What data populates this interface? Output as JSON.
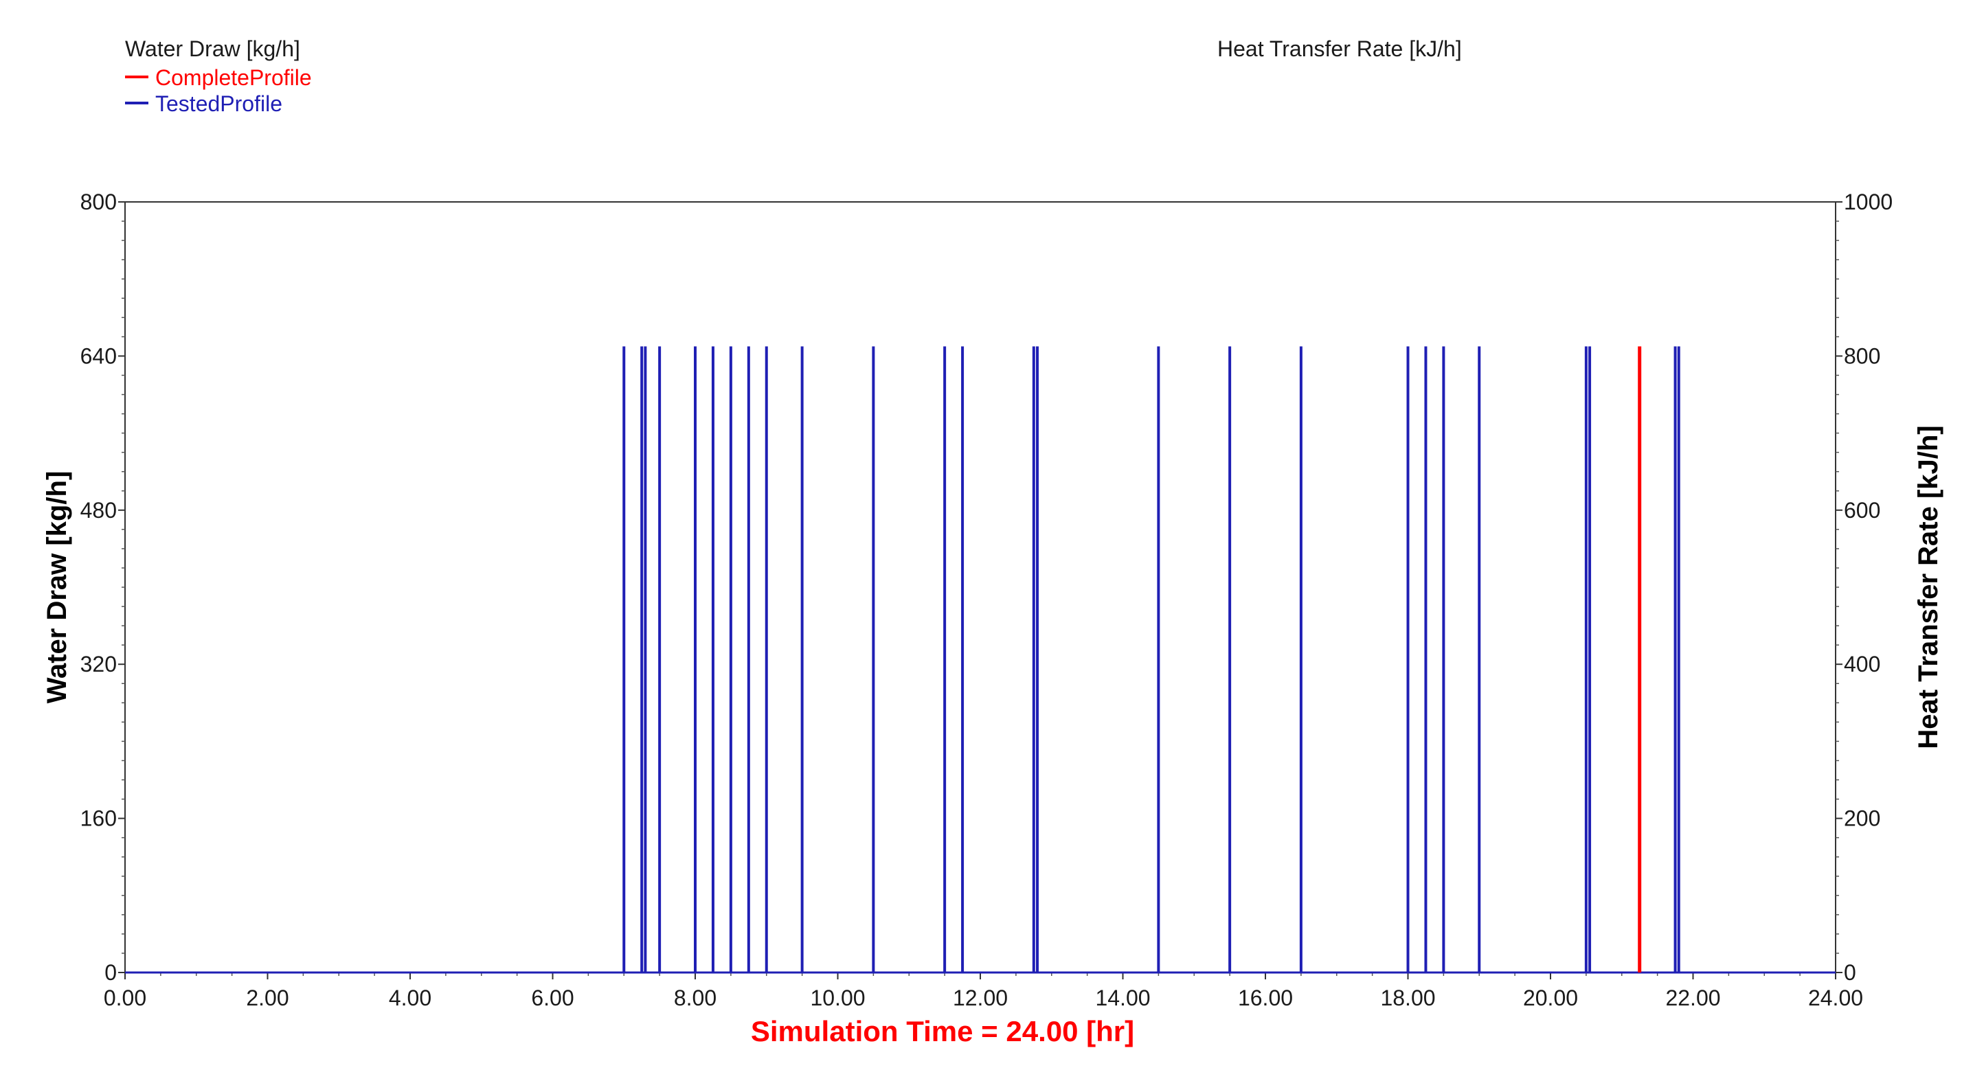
{
  "chart_data": {
    "type": "line",
    "legend_left": {
      "title": "Water Draw [kg/h]",
      "entries": [
        {
          "name": "CompleteProfile",
          "color": "#ff0000"
        },
        {
          "name": "TestedProfile",
          "color": "#1f1fb4"
        }
      ]
    },
    "legend_right": {
      "title": "Heat Transfer Rate [kJ/h]"
    },
    "ylabel_left": "Water Draw [kg/h]",
    "ylabel_right": "Heat Transfer Rate [kJ/h]",
    "xlim": [
      0,
      24
    ],
    "ylim_left": [
      0,
      800
    ],
    "ylim_right": [
      0,
      1000
    ],
    "x_ticks": [
      "0.00",
      "2.00",
      "4.00",
      "6.00",
      "8.00",
      "10.00",
      "12.00",
      "14.00",
      "16.00",
      "18.00",
      "20.00",
      "22.00",
      "24.00"
    ],
    "y_ticks_left": [
      "0",
      "160",
      "320",
      "480",
      "640",
      "800"
    ],
    "y_ticks_right": [
      "0",
      "200",
      "400",
      "600",
      "800",
      "1000"
    ],
    "status_text": "Simulation Time =  24.00 [hr]",
    "grid": false,
    "series": [
      {
        "name": "TestedProfile",
        "color": "#1f1fb4",
        "spike_value": 650,
        "spike_times": [
          7.0,
          7.25,
          7.3,
          7.5,
          8.0,
          8.25,
          8.5,
          8.75,
          9.0,
          9.5,
          10.5,
          11.5,
          11.75,
          12.75,
          12.8,
          14.5,
          15.5,
          16.5,
          18.0,
          18.25,
          18.5,
          19.0,
          20.5,
          20.55,
          21.75,
          21.8
        ]
      },
      {
        "name": "CompleteProfile",
        "color": "#ff0000",
        "spike_value": 650,
        "spike_times": [
          21.25
        ]
      }
    ]
  }
}
